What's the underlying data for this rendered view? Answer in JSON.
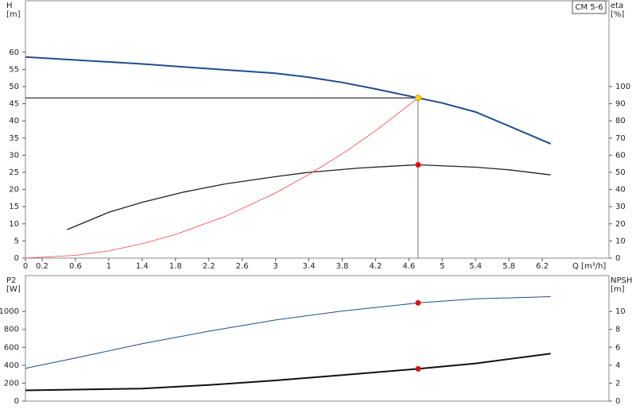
{
  "chart_data": [
    {
      "type": "line",
      "legend": "CM 5-6",
      "ylabel": "H",
      "yunit": "[m]",
      "y2label": "eta",
      "y2unit": "[%]",
      "xlabel": "Q [m³/h]",
      "xlim": [
        0,
        7.0
      ],
      "xticks": [
        0,
        0.2,
        0.6,
        1.0,
        1.4,
        1.8,
        2.2,
        2.6,
        3.0,
        3.4,
        3.8,
        4.2,
        4.6,
        5.0,
        5.4,
        5.8,
        6.2
      ],
      "ylim": [
        0,
        75
      ],
      "yticks": [
        0,
        5,
        10,
        15,
        20,
        25,
        30,
        35,
        40,
        45,
        50,
        55,
        60
      ],
      "y2lim": [
        0,
        150
      ],
      "y2ticks": [
        0,
        10,
        20,
        30,
        40,
        50,
        60,
        70,
        80,
        90,
        100
      ],
      "series": [
        {
          "color": "#1f4e8c",
          "width": 2,
          "x": [
            0,
            1.4,
            2.2,
            3.0,
            3.4,
            3.8,
            4.2,
            4.71,
            5.0,
            5.4,
            5.8,
            6.3
          ],
          "values": [
            58.6,
            56.6,
            55.2,
            53.9,
            52.7,
            51.2,
            49.3,
            46.7,
            45.2,
            42.6,
            38.5,
            33.3
          ]
        },
        {
          "color": "#222222",
          "width": 1.3,
          "axis": "y2",
          "x": [
            0.5,
            1.0,
            1.4,
            1.9,
            2.4,
            3.0,
            3.4,
            4.0,
            4.4,
            4.71,
            5.4,
            5.8,
            6.3
          ],
          "values": [
            16.6,
            26.7,
            32.5,
            38.5,
            43.3,
            47.5,
            50,
            52.5,
            53.6,
            54.4,
            53,
            51.5,
            48.5
          ]
        },
        {
          "color": "#ee4444",
          "width": 0.8,
          "x": [
            0,
            0.6,
            1.0,
            1.4,
            1.8,
            2.4,
            3.0,
            3.4,
            3.8,
            4.2,
            4.71
          ],
          "values": [
            0,
            0.8,
            2.1,
            4.2,
            6.9,
            12.2,
            19.0,
            24.4,
            30.4,
            37.1,
            46.7
          ]
        }
      ],
      "markers": [
        {
          "x": 4.71,
          "values": 46.7,
          "color": "#ffd700"
        },
        {
          "x": 4.71,
          "values": 54.4,
          "axis": "y2",
          "color": "#e01010"
        }
      ]
    },
    {
      "type": "line",
      "ylabel": "P2",
      "yunit": "[W]",
      "y2label": "NPSH",
      "y2unit": "[m]",
      "xlim": [
        0,
        7.0
      ],
      "ylim": [
        0,
        1400
      ],
      "yticks": [
        0,
        200,
        400,
        600,
        800,
        {
          "value": 1000,
          "label": "1000"
        }
      ],
      "y2lim": [
        0,
        14
      ],
      "y2ticks": [
        0,
        2,
        4,
        6,
        8,
        10
      ],
      "series": [
        {
          "color": "#1f4e8c",
          "width": 1,
          "x": [
            0,
            0.6,
            1.4,
            2.2,
            3.0,
            3.8,
            4.71,
            5.4,
            6.3
          ],
          "values": [
            365,
            480,
            640,
            780,
            905,
            1005,
            1095,
            1140,
            1165
          ]
        },
        {
          "color": "#111111",
          "width": 2,
          "axis": "y2",
          "x": [
            0,
            1.4,
            2.2,
            3.0,
            3.8,
            4.71,
            5.4,
            6.3
          ],
          "values": [
            1.2,
            1.4,
            1.8,
            2.3,
            2.9,
            3.6,
            4.2,
            5.3
          ]
        }
      ],
      "markers": [
        {
          "x": 4.71,
          "values": 1095,
          "color": "#e01010"
        },
        {
          "x": 4.71,
          "values": 3.6,
          "axis": "y2",
          "color": "#e01010"
        }
      ]
    }
  ]
}
